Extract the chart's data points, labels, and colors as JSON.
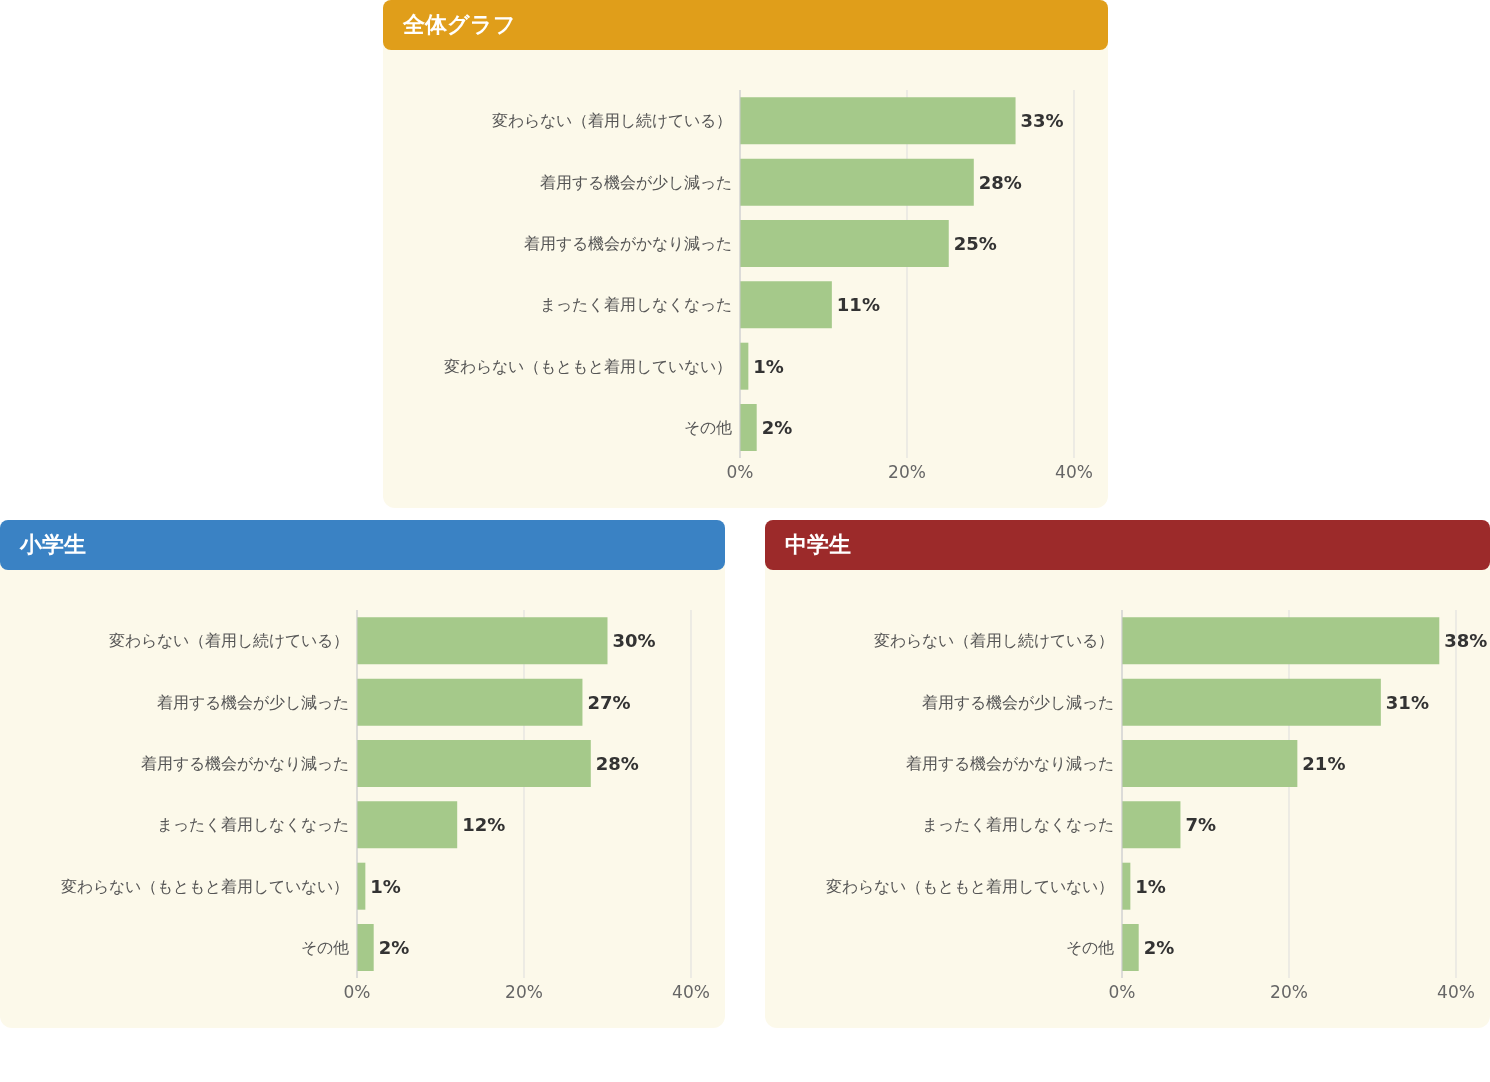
{
  "chart_data": [
    {
      "type": "bar",
      "orientation": "horizontal",
      "title": "全体グラフ",
      "categories": [
        "変わらない（着用し続けている）",
        "着用する機会が少し減った",
        "着用する機会がかなり減った",
        "まったく着用しなくなった",
        "変わらない（もともと着用していない）",
        "その他"
      ],
      "values": [
        33,
        28,
        25,
        11,
        1,
        2
      ],
      "value_labels": [
        "33%",
        "28%",
        "25%",
        "11%",
        "1%",
        "2%"
      ],
      "color": "#a5c98a",
      "xlim": [
        0,
        40
      ],
      "xticks": [
        {
          "value": 0,
          "label": "0%"
        },
        {
          "value": 20,
          "label": "20%"
        },
        {
          "value": 40,
          "label": "40%"
        }
      ],
      "grid": "x"
    },
    {
      "type": "bar",
      "orientation": "horizontal",
      "title": "小学生",
      "categories": [
        "変わらない（着用し続けている）",
        "着用する機会が少し減った",
        "着用する機会がかなり減った",
        "まったく着用しなくなった",
        "変わらない（もともと着用していない）",
        "その他"
      ],
      "values": [
        30,
        27,
        28,
        12,
        1,
        2
      ],
      "value_labels": [
        "30%",
        "27%",
        "28%",
        "12%",
        "1%",
        "2%"
      ],
      "color": "#a5c98a",
      "xlim": [
        0,
        40
      ],
      "xticks": [
        {
          "value": 0,
          "label": "0%"
        },
        {
          "value": 20,
          "label": "20%"
        },
        {
          "value": 40,
          "label": "40%"
        }
      ],
      "grid": "x"
    },
    {
      "type": "bar",
      "orientation": "horizontal",
      "title": "中学生",
      "categories": [
        "変わらない（着用し続けている）",
        "着用する機会が少し減った",
        "着用する機会がかなり減った",
        "まったく着用しなくなった",
        "変わらない（もともと着用していない）",
        "その他"
      ],
      "values": [
        38,
        31,
        21,
        7,
        1,
        2
      ],
      "value_labels": [
        "38%",
        "31%",
        "21%",
        "7%",
        "1%",
        "2%"
      ],
      "color": "#a5c98a",
      "xlim": [
        0,
        40
      ],
      "xticks": [
        {
          "value": 0,
          "label": "0%"
        },
        {
          "value": 20,
          "label": "20%"
        },
        {
          "value": 40,
          "label": "40%"
        }
      ],
      "grid": "x"
    }
  ]
}
